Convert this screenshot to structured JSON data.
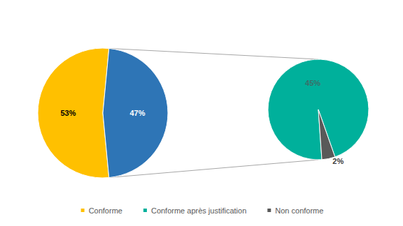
{
  "chart_data": [
    {
      "type": "pie",
      "categories": [
        "Conforme",
        null
      ],
      "values": [
        53,
        47
      ],
      "value_labels": [
        "53%",
        "47%"
      ],
      "colors": [
        "#FFC000",
        "#2E75B6"
      ],
      "data_labels": true,
      "legend": "bottom"
    },
    {
      "type": "pie",
      "categories": [
        "Conforme après justification",
        "Non conforme"
      ],
      "values": [
        45,
        2
      ],
      "value_labels": [
        "45%",
        "2%"
      ],
      "colors": [
        "#00B09B",
        "#595959"
      ],
      "data_labels": true,
      "legend": "bottom"
    }
  ]
}
